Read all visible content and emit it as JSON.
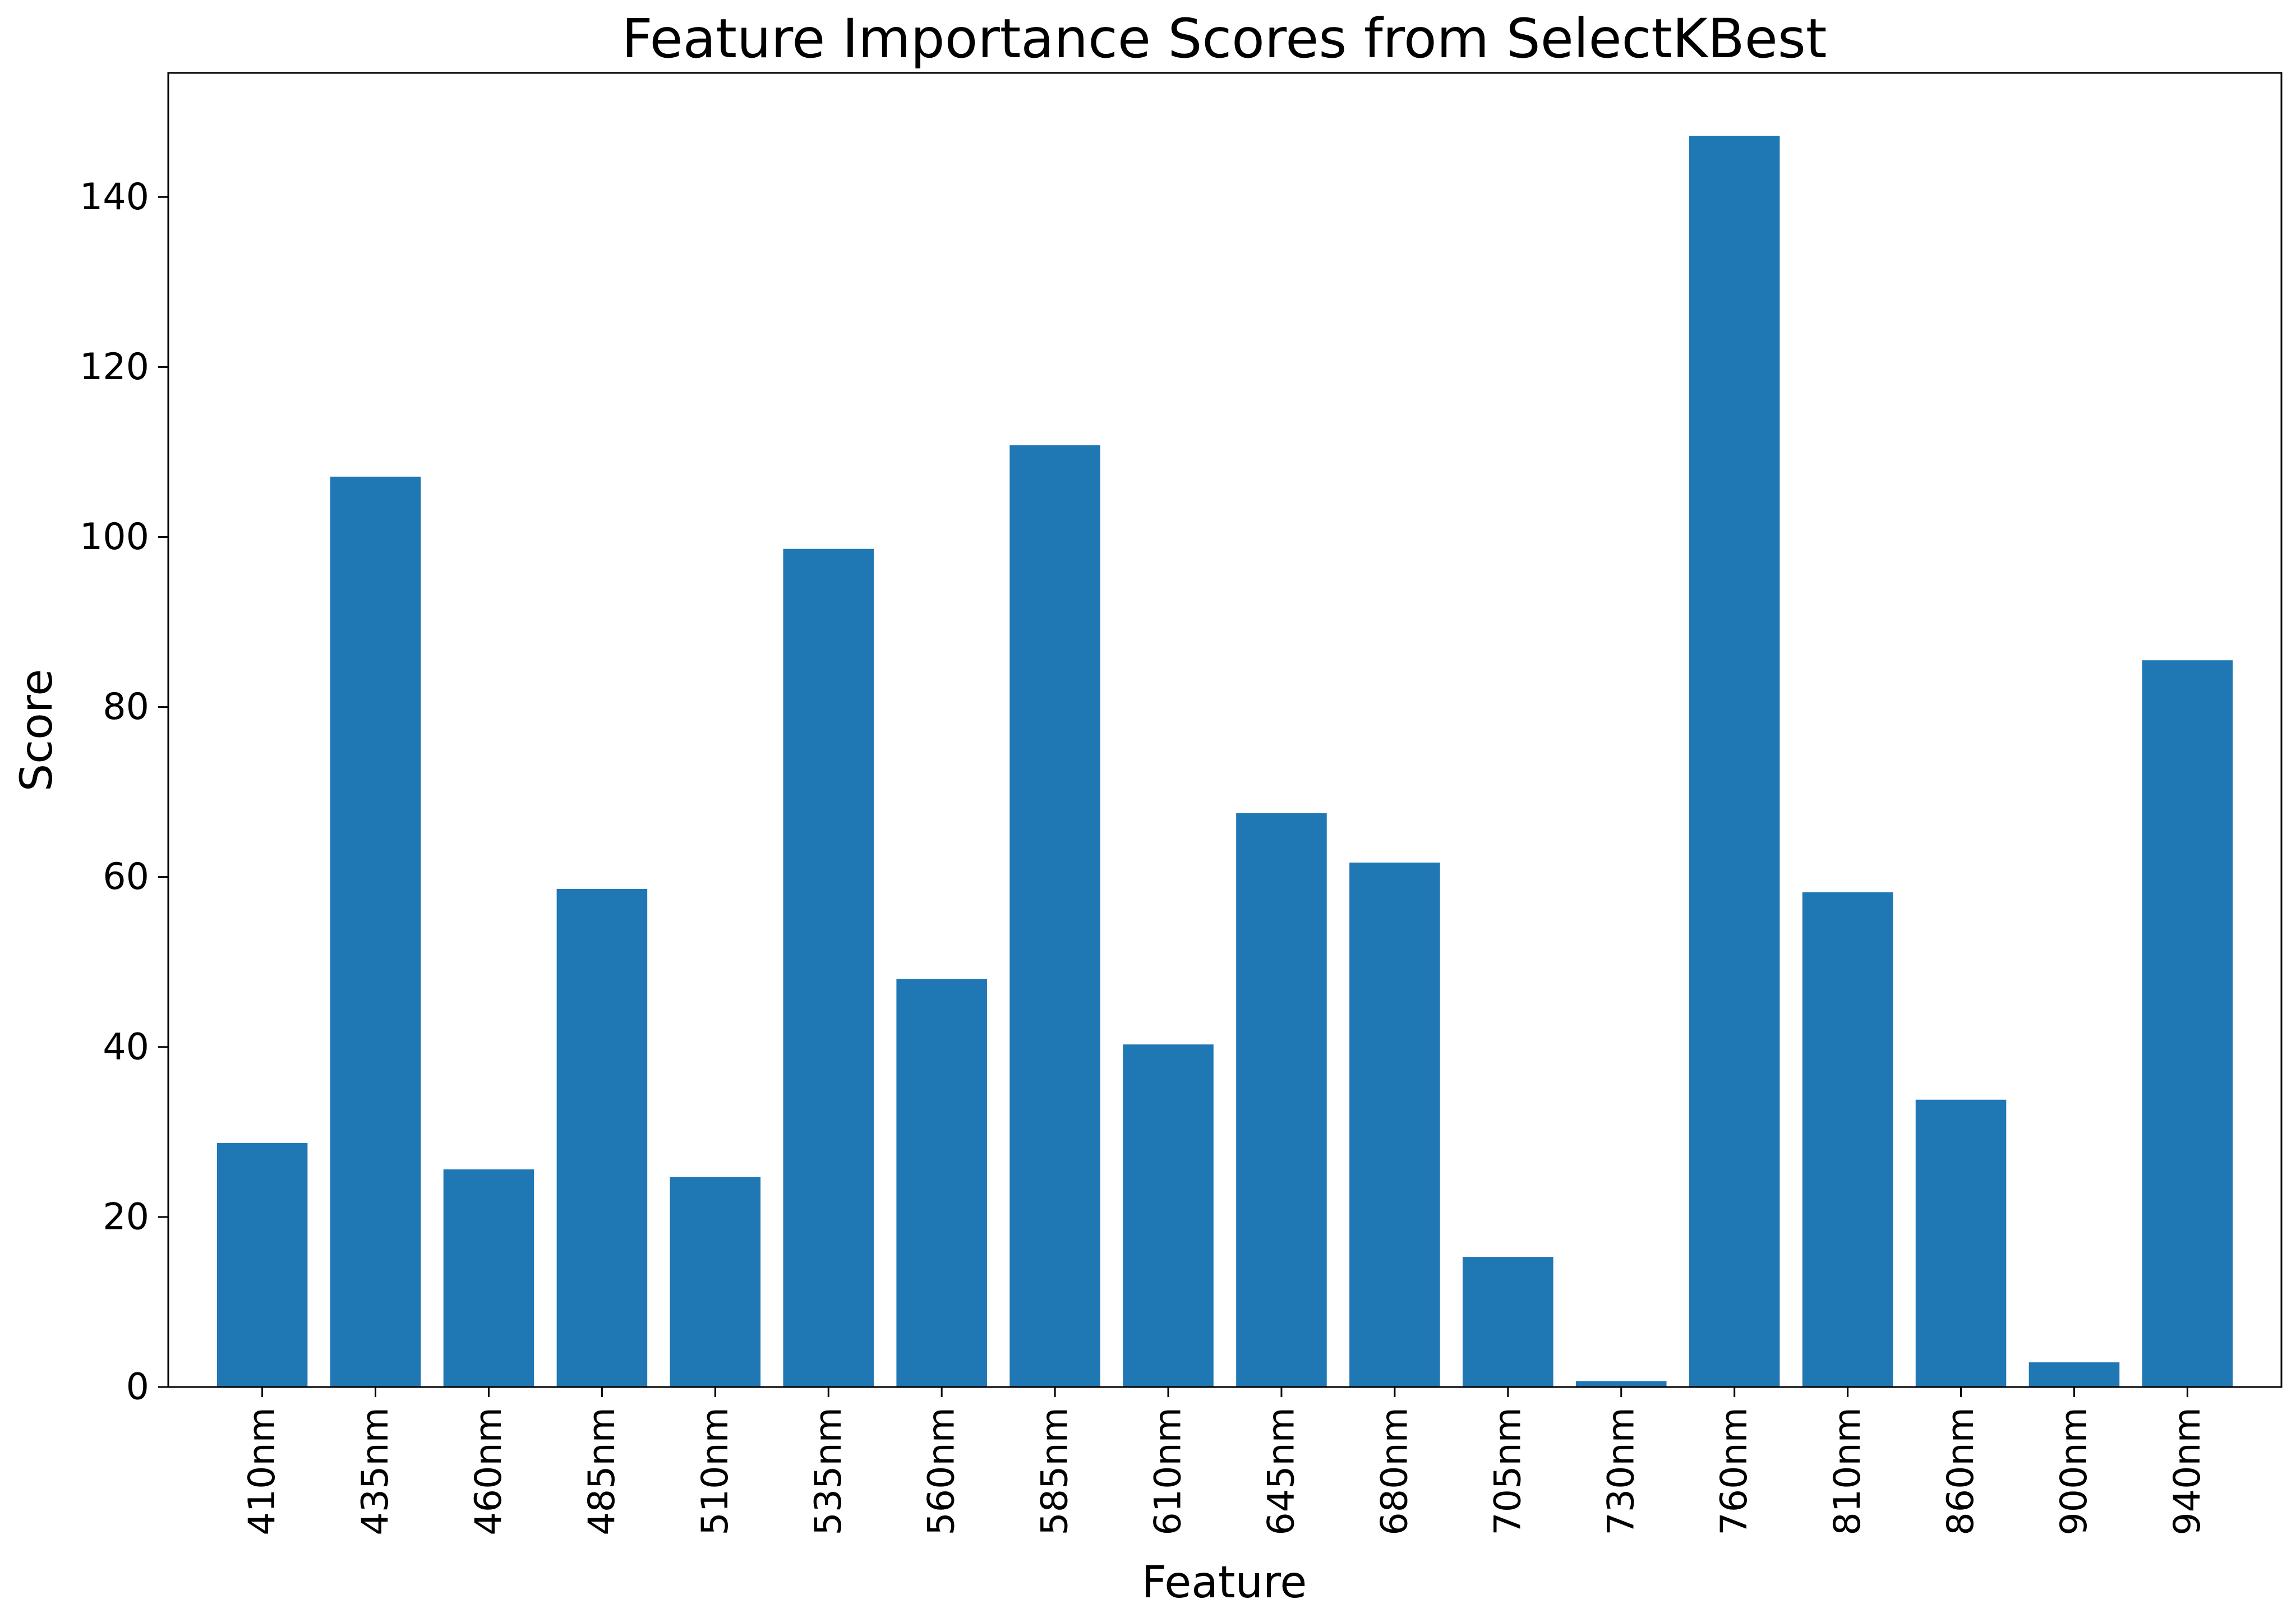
{
  "chart_data": {
    "type": "bar",
    "title": "Feature Importance Scores from SelectKBest",
    "xlabel": "Feature",
    "ylabel": "Score",
    "categories": [
      "410nm",
      "435nm",
      "460nm",
      "485nm",
      "510nm",
      "535nm",
      "560nm",
      "585nm",
      "610nm",
      "645nm",
      "680nm",
      "705nm",
      "730nm",
      "760nm",
      "810nm",
      "860nm",
      "900nm",
      "940nm"
    ],
    "values": [
      28.7,
      107.1,
      25.6,
      58.6,
      24.7,
      98.6,
      48.0,
      110.8,
      40.3,
      67.5,
      61.7,
      15.3,
      0.7,
      147.2,
      58.2,
      33.8,
      2.9,
      85.5
    ],
    "ylim": [
      0,
      154.6
    ],
    "yticks": [
      0,
      20,
      40,
      60,
      80,
      100,
      120,
      140
    ],
    "ytick_labels": [
      "0",
      "20",
      "40",
      "60",
      "80",
      "100",
      "120",
      "140"
    ],
    "bar_color": "#1f77b4",
    "grid": false,
    "legend": "none"
  }
}
